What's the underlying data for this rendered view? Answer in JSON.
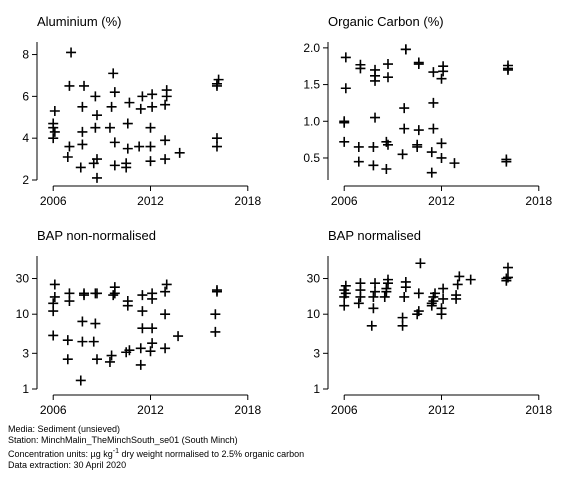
{
  "chart_data": [
    {
      "type": "scatter",
      "title": "Aluminium (%)",
      "y_scale": "linear",
      "xlim": [
        2005,
        2019
      ],
      "ylim": [
        2,
        8.6
      ],
      "x_ticks": [
        "2006",
        "2012",
        "2018"
      ],
      "y_ticks": [
        "2",
        "4",
        "6",
        "8"
      ],
      "points": [
        {
          "x": 2006.0,
          "y": 4.0
        },
        {
          "x": 2006.0,
          "y": 4.5
        },
        {
          "x": 2006.0,
          "y": 4.7
        },
        {
          "x": 2006.1,
          "y": 5.3
        },
        {
          "x": 2006.1,
          "y": 4.3
        },
        {
          "x": 2006.9,
          "y": 3.1
        },
        {
          "x": 2007.0,
          "y": 3.6
        },
        {
          "x": 2007.0,
          "y": 6.5
        },
        {
          "x": 2007.1,
          "y": 8.1
        },
        {
          "x": 2007.7,
          "y": 2.6
        },
        {
          "x": 2007.8,
          "y": 3.7
        },
        {
          "x": 2007.8,
          "y": 4.3
        },
        {
          "x": 2007.8,
          "y": 5.5
        },
        {
          "x": 2007.9,
          "y": 6.5
        },
        {
          "x": 2008.5,
          "y": 2.8
        },
        {
          "x": 2008.6,
          "y": 4.5
        },
        {
          "x": 2008.6,
          "y": 6.0
        },
        {
          "x": 2008.7,
          "y": 2.1
        },
        {
          "x": 2008.7,
          "y": 3.0
        },
        {
          "x": 2008.7,
          "y": 5.1
        },
        {
          "x": 2009.5,
          "y": 4.5
        },
        {
          "x": 2009.6,
          "y": 5.5
        },
        {
          "x": 2009.7,
          "y": 7.1
        },
        {
          "x": 2009.8,
          "y": 2.7
        },
        {
          "x": 2009.8,
          "y": 3.8
        },
        {
          "x": 2009.8,
          "y": 6.2
        },
        {
          "x": 2010.5,
          "y": 2.6
        },
        {
          "x": 2010.5,
          "y": 2.8
        },
        {
          "x": 2010.6,
          "y": 3.5
        },
        {
          "x": 2010.6,
          "y": 4.7
        },
        {
          "x": 2010.7,
          "y": 5.7
        },
        {
          "x": 2011.3,
          "y": 3.6
        },
        {
          "x": 2011.4,
          "y": 5.4
        },
        {
          "x": 2011.5,
          "y": 6.0
        },
        {
          "x": 2012.0,
          "y": 2.9
        },
        {
          "x": 2012.0,
          "y": 3.6
        },
        {
          "x": 2012.0,
          "y": 4.5
        },
        {
          "x": 2012.1,
          "y": 5.5
        },
        {
          "x": 2012.1,
          "y": 6.1
        },
        {
          "x": 2012.9,
          "y": 3.0
        },
        {
          "x": 2012.9,
          "y": 3.9
        },
        {
          "x": 2012.9,
          "y": 5.6
        },
        {
          "x": 2013.0,
          "y": 6.0
        },
        {
          "x": 2013.0,
          "y": 6.3
        },
        {
          "x": 2013.8,
          "y": 3.3
        },
        {
          "x": 2016.1,
          "y": 3.6
        },
        {
          "x": 2016.1,
          "y": 4.0
        },
        {
          "x": 2016.1,
          "y": 6.5
        },
        {
          "x": 2016.1,
          "y": 6.6
        },
        {
          "x": 2016.2,
          "y": 6.8
        }
      ]
    },
    {
      "type": "scatter",
      "title": "Organic Carbon (%)",
      "y_scale": "linear",
      "xlim": [
        2005,
        2019
      ],
      "ylim": [
        0.2,
        2.08
      ],
      "x_ticks": [
        "2006",
        "2012",
        "2018"
      ],
      "y_ticks": [
        "0.5",
        "1.0",
        "1.5",
        "2.0"
      ],
      "points": [
        {
          "x": 2006.0,
          "y": 0.72
        },
        {
          "x": 2006.0,
          "y": 0.98
        },
        {
          "x": 2006.0,
          "y": 1.0
        },
        {
          "x": 2006.1,
          "y": 1.45
        },
        {
          "x": 2006.1,
          "y": 1.87
        },
        {
          "x": 2006.9,
          "y": 0.45
        },
        {
          "x": 2006.9,
          "y": 0.65
        },
        {
          "x": 2007.0,
          "y": 1.72
        },
        {
          "x": 2007.0,
          "y": 1.77
        },
        {
          "x": 2007.8,
          "y": 0.4
        },
        {
          "x": 2007.8,
          "y": 0.65
        },
        {
          "x": 2007.9,
          "y": 1.05
        },
        {
          "x": 2007.9,
          "y": 1.55
        },
        {
          "x": 2007.9,
          "y": 1.62
        },
        {
          "x": 2007.9,
          "y": 1.7
        },
        {
          "x": 2008.6,
          "y": 0.35
        },
        {
          "x": 2008.6,
          "y": 0.72
        },
        {
          "x": 2008.7,
          "y": 0.68
        },
        {
          "x": 2008.7,
          "y": 1.6
        },
        {
          "x": 2008.7,
          "y": 1.78
        },
        {
          "x": 2009.6,
          "y": 0.55
        },
        {
          "x": 2009.7,
          "y": 0.9
        },
        {
          "x": 2009.7,
          "y": 1.18
        },
        {
          "x": 2009.8,
          "y": 1.98
        },
        {
          "x": 2009.8,
          "y": 1.98
        },
        {
          "x": 2010.5,
          "y": 0.65
        },
        {
          "x": 2010.5,
          "y": 0.68
        },
        {
          "x": 2010.6,
          "y": 0.88
        },
        {
          "x": 2010.6,
          "y": 1.78
        },
        {
          "x": 2010.6,
          "y": 1.8
        },
        {
          "x": 2011.4,
          "y": 0.3
        },
        {
          "x": 2011.4,
          "y": 0.58
        },
        {
          "x": 2011.5,
          "y": 0.9
        },
        {
          "x": 2011.5,
          "y": 1.25
        },
        {
          "x": 2011.5,
          "y": 1.67
        },
        {
          "x": 2012.0,
          "y": 0.5
        },
        {
          "x": 2012.0,
          "y": 0.7
        },
        {
          "x": 2012.0,
          "y": 1.58
        },
        {
          "x": 2012.1,
          "y": 1.68
        },
        {
          "x": 2012.1,
          "y": 1.75
        },
        {
          "x": 2012.8,
          "y": 0.43
        },
        {
          "x": 2016.0,
          "y": 0.45
        },
        {
          "x": 2016.0,
          "y": 0.48
        },
        {
          "x": 2016.1,
          "y": 1.7
        },
        {
          "x": 2016.1,
          "y": 1.72
        },
        {
          "x": 2016.1,
          "y": 1.76
        }
      ]
    },
    {
      "type": "scatter",
      "title": "BAP non-normalised",
      "y_scale": "log",
      "xlim": [
        2005,
        2019
      ],
      "ylim": [
        1,
        60
      ],
      "x_ticks": [
        "2006",
        "2012",
        "2018"
      ],
      "y_ticks": [
        "1",
        "3",
        "10",
        "30"
      ],
      "points": [
        {
          "x": 2006.0,
          "y": 5.2
        },
        {
          "x": 2006.0,
          "y": 11
        },
        {
          "x": 2006.0,
          "y": 14
        },
        {
          "x": 2006.1,
          "y": 17
        },
        {
          "x": 2006.1,
          "y": 25
        },
        {
          "x": 2006.9,
          "y": 2.5
        },
        {
          "x": 2006.9,
          "y": 4.5
        },
        {
          "x": 2007.0,
          "y": 15
        },
        {
          "x": 2007.0,
          "y": 19
        },
        {
          "x": 2007.7,
          "y": 1.3
        },
        {
          "x": 2007.8,
          "y": 4.3
        },
        {
          "x": 2007.8,
          "y": 8
        },
        {
          "x": 2007.9,
          "y": 18
        },
        {
          "x": 2007.9,
          "y": 19
        },
        {
          "x": 2008.5,
          "y": 4.3
        },
        {
          "x": 2008.6,
          "y": 7.5
        },
        {
          "x": 2008.6,
          "y": 19
        },
        {
          "x": 2008.7,
          "y": 2.5
        },
        {
          "x": 2008.7,
          "y": 19
        },
        {
          "x": 2009.5,
          "y": 2.3
        },
        {
          "x": 2009.6,
          "y": 2.8
        },
        {
          "x": 2009.7,
          "y": 18
        },
        {
          "x": 2009.8,
          "y": 19
        },
        {
          "x": 2009.8,
          "y": 23
        },
        {
          "x": 2010.5,
          "y": 3.1
        },
        {
          "x": 2010.6,
          "y": 13
        },
        {
          "x": 2010.6,
          "y": 15
        },
        {
          "x": 2010.7,
          "y": 3.3
        },
        {
          "x": 2011.4,
          "y": 2.1
        },
        {
          "x": 2011.4,
          "y": 3.5
        },
        {
          "x": 2011.5,
          "y": 6.5
        },
        {
          "x": 2011.5,
          "y": 11
        },
        {
          "x": 2011.5,
          "y": 18
        },
        {
          "x": 2012.0,
          "y": 3.2
        },
        {
          "x": 2012.1,
          "y": 4.1
        },
        {
          "x": 2012.1,
          "y": 6.5
        },
        {
          "x": 2012.1,
          "y": 16
        },
        {
          "x": 2012.1,
          "y": 19
        },
        {
          "x": 2012.9,
          "y": 10
        },
        {
          "x": 2012.9,
          "y": 20
        },
        {
          "x": 2013.0,
          "y": 25
        },
        {
          "x": 2012.9,
          "y": 3.5
        },
        {
          "x": 2013.7,
          "y": 5.1
        },
        {
          "x": 2016.0,
          "y": 5.8
        },
        {
          "x": 2016.0,
          "y": 10
        },
        {
          "x": 2016.1,
          "y": 20
        },
        {
          "x": 2016.1,
          "y": 21
        }
      ]
    },
    {
      "type": "scatter",
      "title": "BAP normalised",
      "y_scale": "log",
      "xlim": [
        2005,
        2019
      ],
      "ylim": [
        1,
        60
      ],
      "x_ticks": [
        "2006",
        "2012",
        "2018"
      ],
      "y_ticks": [
        "1",
        "3",
        "10",
        "30"
      ],
      "points": [
        {
          "x": 2006.0,
          "y": 13
        },
        {
          "x": 2006.0,
          "y": 17
        },
        {
          "x": 2006.0,
          "y": 21
        },
        {
          "x": 2006.1,
          "y": 24
        },
        {
          "x": 2006.1,
          "y": 19
        },
        {
          "x": 2006.9,
          "y": 14
        },
        {
          "x": 2007.0,
          "y": 17
        },
        {
          "x": 2007.0,
          "y": 21
        },
        {
          "x": 2007.0,
          "y": 26
        },
        {
          "x": 2007.7,
          "y": 7
        },
        {
          "x": 2007.8,
          "y": 12
        },
        {
          "x": 2007.8,
          "y": 17
        },
        {
          "x": 2007.9,
          "y": 20
        },
        {
          "x": 2007.9,
          "y": 26
        },
        {
          "x": 2008.5,
          "y": 17
        },
        {
          "x": 2008.6,
          "y": 20
        },
        {
          "x": 2008.6,
          "y": 22
        },
        {
          "x": 2008.7,
          "y": 26
        },
        {
          "x": 2008.7,
          "y": 29
        },
        {
          "x": 2009.6,
          "y": 7
        },
        {
          "x": 2009.6,
          "y": 9
        },
        {
          "x": 2009.7,
          "y": 17
        },
        {
          "x": 2009.8,
          "y": 23
        },
        {
          "x": 2009.8,
          "y": 27
        },
        {
          "x": 2010.5,
          "y": 10
        },
        {
          "x": 2010.6,
          "y": 11
        },
        {
          "x": 2010.6,
          "y": 19
        },
        {
          "x": 2010.7,
          "y": 48
        },
        {
          "x": 2011.4,
          "y": 13
        },
        {
          "x": 2011.4,
          "y": 14
        },
        {
          "x": 2011.5,
          "y": 15
        },
        {
          "x": 2011.5,
          "y": 17
        },
        {
          "x": 2011.6,
          "y": 19
        },
        {
          "x": 2012.0,
          "y": 10
        },
        {
          "x": 2012.0,
          "y": 12
        },
        {
          "x": 2012.1,
          "y": 16
        },
        {
          "x": 2012.1,
          "y": 22
        },
        {
          "x": 2012.9,
          "y": 16
        },
        {
          "x": 2012.9,
          "y": 18
        },
        {
          "x": 2013.0,
          "y": 25
        },
        {
          "x": 2013.1,
          "y": 32
        },
        {
          "x": 2013.8,
          "y": 29
        },
        {
          "x": 2016.0,
          "y": 28
        },
        {
          "x": 2016.0,
          "y": 30
        },
        {
          "x": 2016.1,
          "y": 31
        },
        {
          "x": 2016.1,
          "y": 42
        }
      ]
    }
  ],
  "footer": {
    "media": "Media: Sediment (unsieved)",
    "station": "Station: MinchMalin_TheMinchSouth_se01 (South Minch)",
    "units_prefix": "Concentration units: ",
    "units_unit": "µg kg",
    "units_exp": "-1",
    "units_suffix": " dry weight normalised to 2.5% organic carbon",
    "extraction": "Data extraction: 30 April 2020"
  }
}
